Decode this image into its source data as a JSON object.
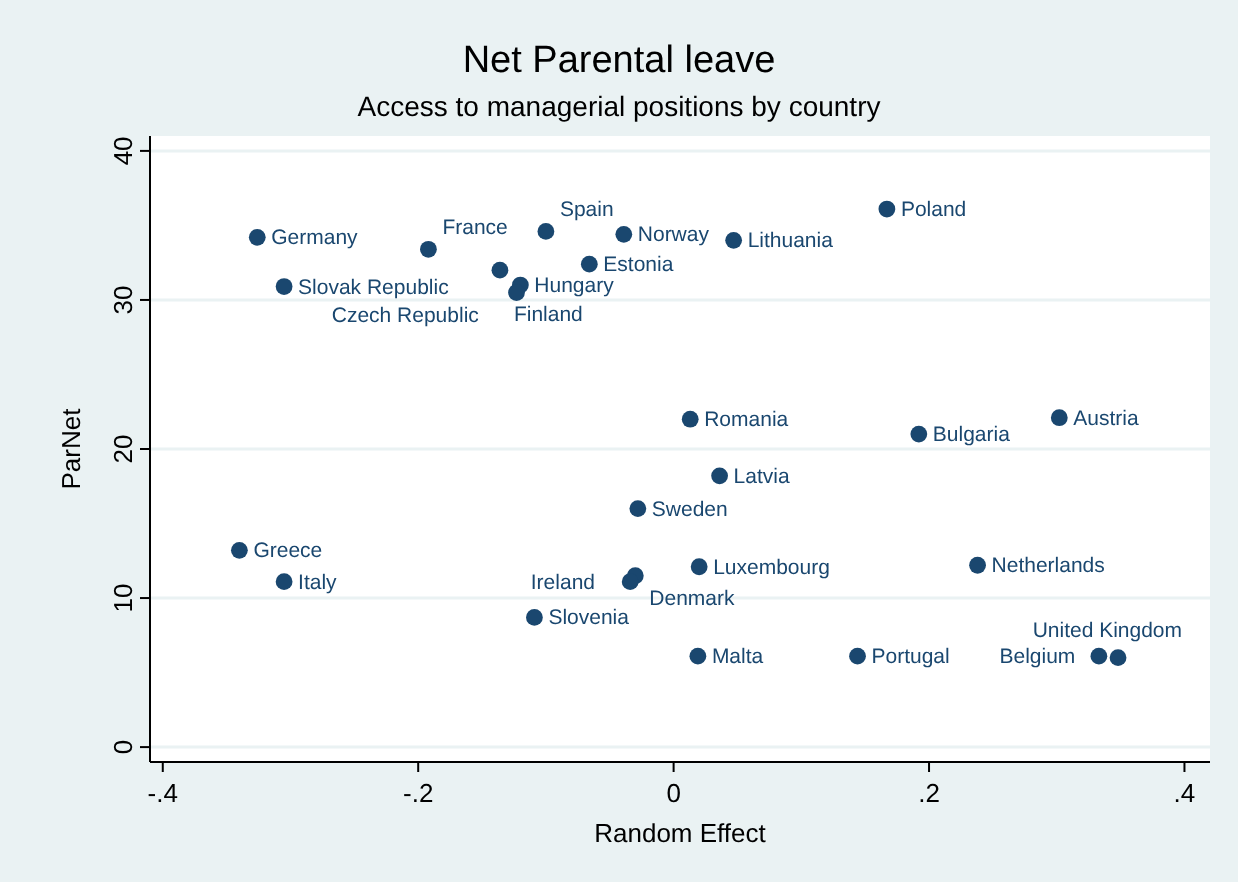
{
  "chart_data": {
    "type": "scatter",
    "title": "Net Parental leave",
    "subtitle": "Access to managerial positions by country",
    "xlabel": "Random Effect",
    "ylabel": "ParNet",
    "xlim": [
      -0.41,
      0.42
    ],
    "ylim": [
      -1,
      41
    ],
    "xticks": [
      {
        "value": -0.4,
        "label": "-.4"
      },
      {
        "value": -0.2,
        "label": "-.2"
      },
      0,
      {
        "value": 0.2,
        "label": ".2"
      },
      {
        "value": 0.4,
        "label": ".4"
      }
    ],
    "yticks": [
      0,
      10,
      20,
      30,
      40
    ],
    "grid": "y",
    "marker": "circle",
    "series": [
      {
        "color": "#1a476f",
        "x": [
          -0.326,
          -0.192,
          -0.305,
          -0.1,
          -0.039,
          0.047,
          -0.066,
          -0.136,
          -0.12,
          -0.123,
          0.167,
          0.013,
          0.192,
          0.302,
          0.036,
          -0.028,
          -0.34,
          -0.305,
          0.238,
          0.02,
          -0.03,
          -0.034,
          -0.109,
          0.019,
          0.144,
          0.333,
          0.348
        ],
        "values": [
          34.2,
          33.4,
          30.9,
          34.6,
          34.4,
          34.0,
          32.4,
          32.0,
          31.0,
          30.5,
          36.1,
          22.0,
          21.0,
          22.1,
          18.2,
          16.0,
          13.2,
          11.1,
          12.2,
          12.1,
          11.5,
          11.1,
          8.7,
          6.1,
          6.1,
          6.1,
          6.0
        ]
      }
    ],
    "annotations": [
      {
        "text": "Germany",
        "x": -0.326,
        "y": 34.2
      },
      {
        "text": "France",
        "x": -0.192,
        "y": 33.4
      },
      {
        "text": "Slovak Republic",
        "x": -0.305,
        "y": 30.9
      },
      {
        "text": "Spain",
        "x": -0.1,
        "y": 34.6
      },
      {
        "text": "Norway",
        "x": -0.039,
        "y": 34.4
      },
      {
        "text": "Lithuania",
        "x": 0.047,
        "y": 34.0
      },
      {
        "text": "Estonia",
        "x": -0.066,
        "y": 32.4
      },
      {
        "text": "Finland",
        "x": -0.136,
        "y": 32.0
      },
      {
        "text": "Hungary",
        "x": -0.12,
        "y": 31.0
      },
      {
        "text": "Czech Republic",
        "x": -0.123,
        "y": 30.5
      },
      {
        "text": "Poland",
        "x": 0.167,
        "y": 36.1
      },
      {
        "text": "Romania",
        "x": 0.013,
        "y": 22.0
      },
      {
        "text": "Bulgaria",
        "x": 0.192,
        "y": 21.0
      },
      {
        "text": "Austria",
        "x": 0.302,
        "y": 22.1
      },
      {
        "text": "Latvia",
        "x": 0.036,
        "y": 18.2
      },
      {
        "text": "Sweden",
        "x": -0.028,
        "y": 16.0
      },
      {
        "text": "Greece",
        "x": -0.34,
        "y": 13.2
      },
      {
        "text": "Italy",
        "x": -0.305,
        "y": 11.1
      },
      {
        "text": "Netherlands",
        "x": 0.238,
        "y": 12.2
      },
      {
        "text": "Luxembourg",
        "x": 0.02,
        "y": 12.1
      },
      {
        "text": "Denmark",
        "x": -0.03,
        "y": 11.5
      },
      {
        "text": "Ireland",
        "x": -0.034,
        "y": 11.1
      },
      {
        "text": "Slovenia",
        "x": -0.109,
        "y": 8.7
      },
      {
        "text": "Malta",
        "x": 0.019,
        "y": 6.1
      },
      {
        "text": "Portugal",
        "x": 0.144,
        "y": 6.1
      },
      {
        "text": "Belgium",
        "x": 0.333,
        "y": 6.1
      },
      {
        "text": "United Kingdom",
        "x": 0.348,
        "y": 6.0
      }
    ]
  }
}
